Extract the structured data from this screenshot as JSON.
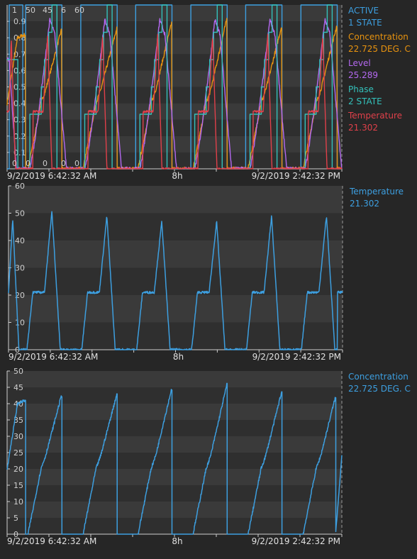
{
  "theme": {
    "background": "#262626",
    "band_dark": "#2f2f2f",
    "band_light": "#3a3a3a",
    "colors": {
      "active": "#3d9fe0",
      "concentration": "#e8930f",
      "level": "#b469f0",
      "phase": "#33c1bb",
      "temperature": "#e0404a",
      "axis": "#cfcfcf"
    }
  },
  "time_axis": {
    "start": "9/2/2019 6:42:32 AM",
    "mid": "8h",
    "end": "9/2/2019 2:42:32 PM"
  },
  "legend_top": [
    {
      "name": "ACTIVE",
      "value": "1 STATE",
      "color": "#3d9fe0"
    },
    {
      "name": "Concentration",
      "value": "22.725 DEG. C",
      "color": "#e8930f"
    },
    {
      "name": "Level",
      "value": "25.289",
      "color": "#b469f0"
    },
    {
      "name": "Phase",
      "value": "2 STATE",
      "color": "#33c1bb"
    },
    {
      "name": "Temperature",
      "value": "21.302",
      "color": "#e0404a"
    }
  ],
  "legend_mid": [
    {
      "name": "Temperature",
      "value": "21.302",
      "color": "#3d9fe0"
    }
  ],
  "legend_bot": [
    {
      "name": "Concentration",
      "value": "22.725 DEG. C",
      "color": "#3d9fe0"
    }
  ],
  "chart_data": [
    {
      "type": "line",
      "panel": "top",
      "overlay_scales": {
        "labels": [
          "1",
          "50",
          "45",
          "6",
          "60"
        ],
        "zero_labels": [
          "0",
          "0",
          "0",
          "0",
          "0"
        ]
      },
      "y_ticks": [
        "0.1",
        "0.2",
        "0.3",
        "0.4",
        "0.5",
        "0.6",
        "0.7",
        "0.8",
        "0.9"
      ],
      "ylim": [
        0,
        1
      ],
      "x_hours": [
        0,
        8
      ],
      "series": [
        {
          "name": "ACTIVE",
          "color": "#3d9fe0",
          "scale_max": 1,
          "cycle_start_h": 0.44,
          "cycle_end_h": 1.31,
          "period_h": 1.315
        },
        {
          "name": "Concentration",
          "color": "#e8930f",
          "scale_max": 50,
          "period_h": 1.315,
          "peak": 43
        },
        {
          "name": "Level",
          "color": "#b469f0",
          "scale_max": 45,
          "period_h": 1.315,
          "peak": 41
        },
        {
          "name": "Phase",
          "color": "#33c1bb",
          "scale_max": 6,
          "period_h": 1.315,
          "steps": [
            0,
            2,
            3,
            4,
            5,
            6
          ]
        },
        {
          "name": "Temperature",
          "color": "#e0404a",
          "scale_max": 60,
          "period_h": 1.315,
          "plateau": 21,
          "peak": 49
        }
      ]
    },
    {
      "type": "line",
      "panel": "middle",
      "series": [
        {
          "name": "Temperature",
          "color": "#3d9fe0"
        }
      ],
      "y_ticks": [
        "0",
        "10",
        "20",
        "30",
        "40",
        "50",
        "60"
      ],
      "ylim": [
        0,
        60
      ],
      "x_hours": [
        0,
        8
      ],
      "cycle_peaks": [
        48,
        51,
        49,
        47,
        47,
        49
      ],
      "plateau_value": 21,
      "end_value": 21.302
    },
    {
      "type": "line",
      "panel": "bottom",
      "series": [
        {
          "name": "Concentration",
          "color": "#3d9fe0"
        }
      ],
      "y_ticks": [
        "0",
        "5",
        "10",
        "15",
        "20",
        "25",
        "30",
        "35",
        "40",
        "45",
        "50"
      ],
      "ylim": [
        0,
        50
      ],
      "x_hours": [
        0,
        8
      ],
      "cycle_peaks": [
        41,
        43,
        43,
        45,
        46,
        44
      ],
      "end_value": 22.725
    }
  ]
}
